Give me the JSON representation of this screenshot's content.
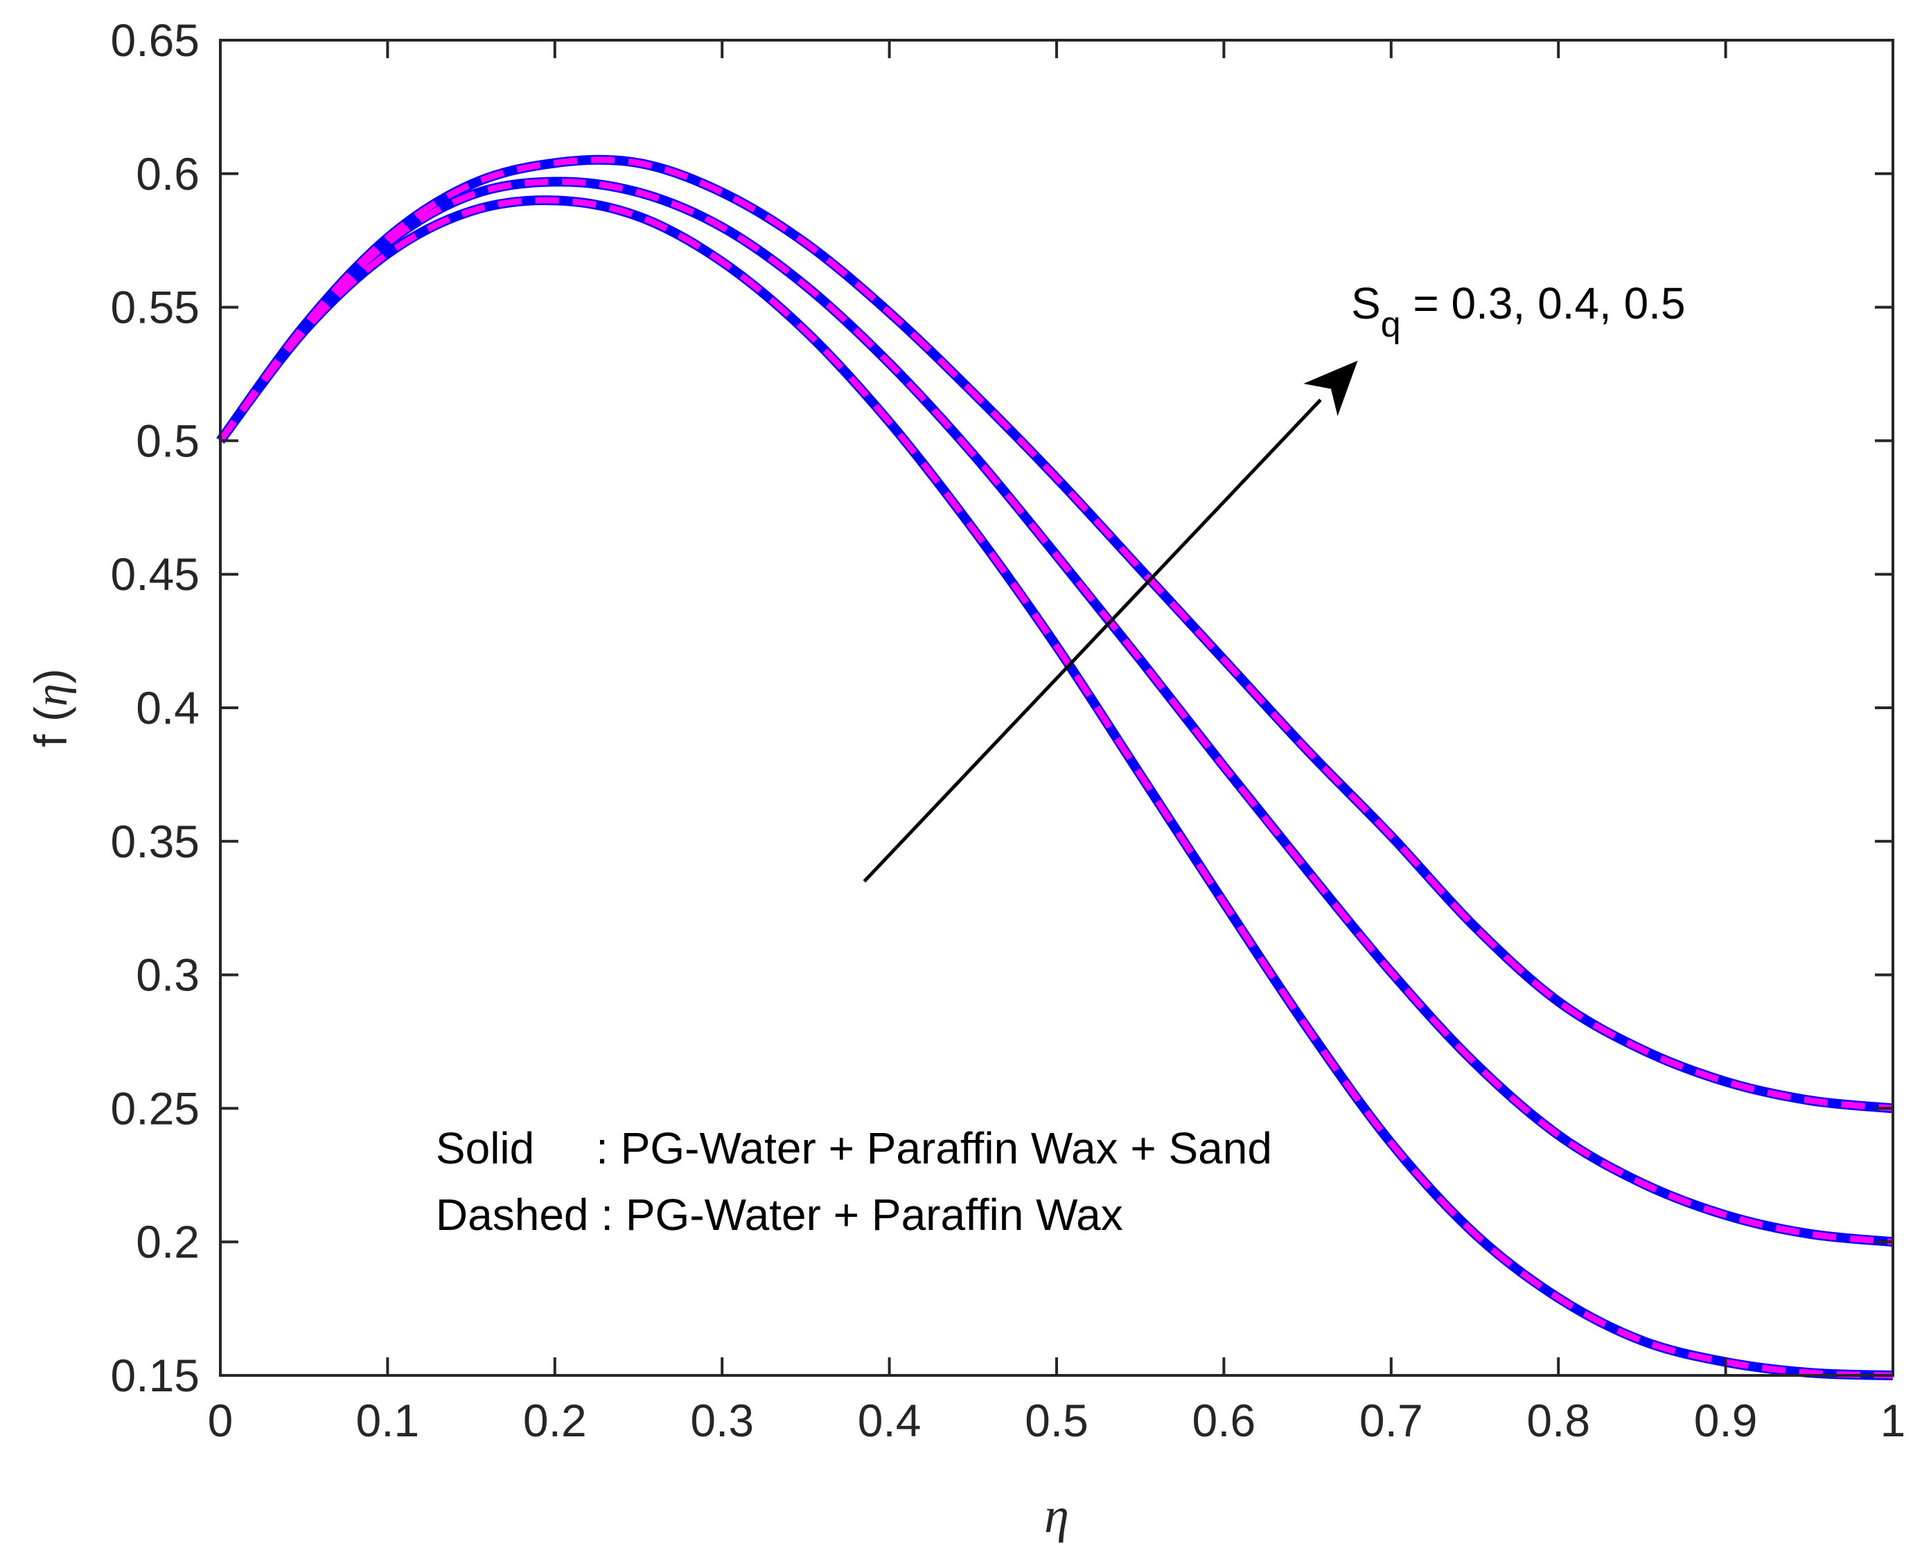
{
  "chart_data": {
    "type": "line",
    "title": "",
    "xlabel": "η",
    "ylabel": {
      "prefix": "f (",
      "symbol": "η",
      "suffix": ")"
    },
    "xlim": [
      0,
      1
    ],
    "ylim": [
      0.15,
      0.65
    ],
    "xticks": [
      0,
      0.1,
      0.2,
      0.3,
      0.4,
      0.5,
      0.6,
      0.7,
      0.8,
      0.9,
      1
    ],
    "xtick_labels": [
      "0",
      "0.1",
      "0.2",
      "0.3",
      "0.4",
      "0.5",
      "0.6",
      "0.7",
      "0.8",
      "0.9",
      "1"
    ],
    "yticks": [
      0.15,
      0.2,
      0.25,
      0.3,
      0.35,
      0.4,
      0.45,
      0.5,
      0.55,
      0.6,
      0.65
    ],
    "ytick_labels": [
      "0.15",
      "0.2",
      "0.25",
      "0.3",
      "0.35",
      "0.4",
      "0.45",
      "0.5",
      "0.55",
      "0.6",
      "0.65"
    ],
    "grid": false,
    "x": [
      0,
      0.05,
      0.1,
      0.15,
      0.2,
      0.25,
      0.3,
      0.35,
      0.4,
      0.45,
      0.5,
      0.55,
      0.6,
      0.65,
      0.7,
      0.75,
      0.8,
      0.85,
      0.9,
      0.95,
      1.0
    ],
    "series": [
      {
        "name": "S_q = 0.3 (Solid: PG-Water + Paraffin Wax + Sand)",
        "style": "solid",
        "color": "#0000ff",
        "values": [
          0.5,
          0.541,
          0.57,
          0.586,
          0.59,
          0.584,
          0.567,
          0.541,
          0.507,
          0.467,
          0.423,
          0.375,
          0.327,
          0.28,
          0.237,
          0.203,
          0.179,
          0.163,
          0.155,
          0.151,
          0.15
        ]
      },
      {
        "name": "S_q = 0.4 (Solid: PG-Water + Paraffin Wax + Sand)",
        "style": "solid",
        "color": "#0000ff",
        "values": [
          0.5,
          0.542,
          0.574,
          0.592,
          0.597,
          0.593,
          0.58,
          0.558,
          0.529,
          0.495,
          0.457,
          0.418,
          0.378,
          0.339,
          0.301,
          0.267,
          0.24,
          0.222,
          0.21,
          0.203,
          0.2
        ]
      },
      {
        "name": "S_q = 0.5 (Solid: PG-Water + Paraffin Wax + Sand)",
        "style": "solid",
        "color": "#0000ff",
        "values": [
          0.5,
          0.543,
          0.576,
          0.596,
          0.604,
          0.604,
          0.593,
          0.574,
          0.548,
          0.518,
          0.486,
          0.452,
          0.418,
          0.384,
          0.352,
          0.318,
          0.29,
          0.272,
          0.26,
          0.253,
          0.25
        ]
      },
      {
        "name": "S_q = 0.3 (Dashed: PG-Water + Paraffin Wax)",
        "style": "dashed",
        "color": "#ff00ff",
        "values": [
          0.5,
          0.541,
          0.57,
          0.586,
          0.59,
          0.584,
          0.567,
          0.541,
          0.507,
          0.467,
          0.423,
          0.375,
          0.327,
          0.28,
          0.237,
          0.203,
          0.179,
          0.163,
          0.155,
          0.151,
          0.15
        ]
      },
      {
        "name": "S_q = 0.4 (Dashed: PG-Water + Paraffin Wax)",
        "style": "dashed",
        "color": "#ff00ff",
        "values": [
          0.5,
          0.542,
          0.574,
          0.592,
          0.597,
          0.593,
          0.58,
          0.558,
          0.529,
          0.495,
          0.457,
          0.418,
          0.378,
          0.339,
          0.301,
          0.267,
          0.24,
          0.222,
          0.21,
          0.203,
          0.2
        ]
      },
      {
        "name": "S_q = 0.5 (Dashed: PG-Water + Paraffin Wax)",
        "style": "dashed",
        "color": "#ff00ff",
        "values": [
          0.5,
          0.543,
          0.576,
          0.596,
          0.604,
          0.604,
          0.593,
          0.574,
          0.548,
          0.518,
          0.486,
          0.452,
          0.418,
          0.384,
          0.352,
          0.318,
          0.29,
          0.272,
          0.26,
          0.253,
          0.25
        ]
      }
    ],
    "annotation": {
      "symbol": "S",
      "subscript": "q",
      "text": " = 0.3, 0.4, 0.5",
      "arrow_from": [
        0.385,
        0.335
      ],
      "arrow_to": [
        0.68,
        0.53
      ]
    },
    "legend_text": {
      "solid_key": "Solid     ",
      "solid_desc": ": PG-Water + Paraffin Wax + Sand",
      "dashed_key": "Dashed ",
      "dashed_desc": ": PG-Water + Paraffin Wax"
    },
    "colors": {
      "axis": "#262626",
      "solid": "#0000ff",
      "dashed": "#ff00ff",
      "arrow": "#000000"
    }
  }
}
